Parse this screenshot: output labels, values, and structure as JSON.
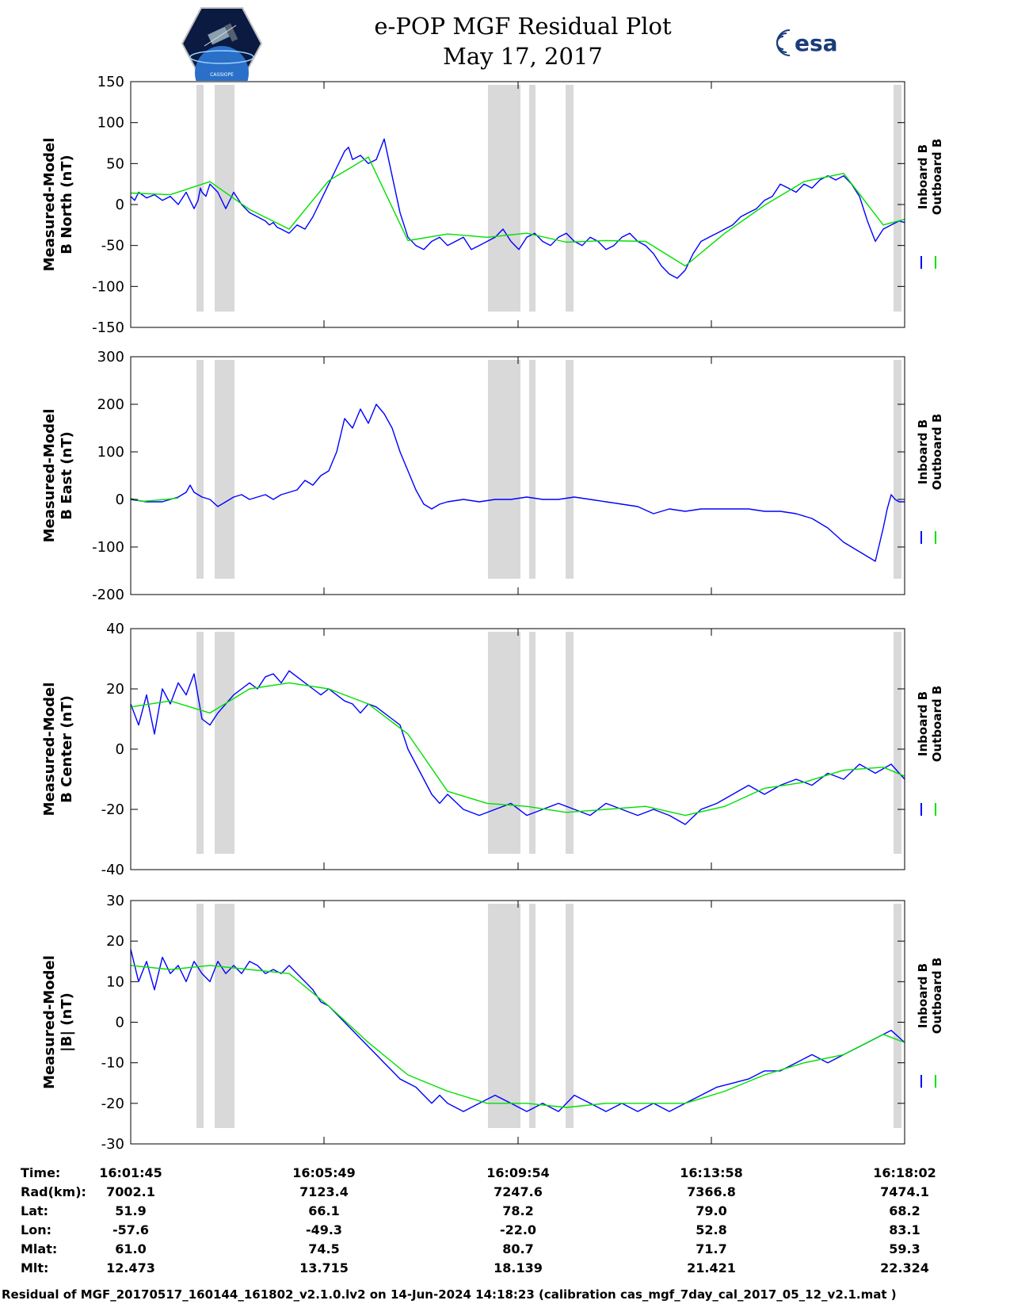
{
  "title": {
    "line1": "e-POP MGF Residual Plot",
    "line2": "May 17, 2017"
  },
  "logos": {
    "left": "cassiope-logo",
    "left_caption": "CASSIOPE",
    "right_text": "esa"
  },
  "colors": {
    "inboard": "#0000ff",
    "outboard": "#00e000",
    "gap": "#d9d9d9"
  },
  "chart_data": [
    {
      "type": "line",
      "ylabel_lines": [
        "Measured-Model",
        "B North (nT)"
      ],
      "ylim": [
        -150,
        150
      ],
      "yticks": [
        150,
        100,
        50,
        0,
        -50,
        -100,
        -150
      ],
      "legend": [
        "Inboard B",
        "Outboard B"
      ],
      "series": [
        {
          "name": "Inboard B",
          "color": "#0000ff",
          "x": [
            0,
            5,
            10,
            20,
            30,
            40,
            50,
            60,
            70,
            80,
            85,
            88,
            90,
            95,
            100,
            110,
            120,
            130,
            140,
            150,
            160,
            170,
            175,
            180,
            185,
            190,
            200,
            210,
            220,
            230,
            240,
            250,
            260,
            270,
            275,
            280,
            290,
            300,
            310,
            320,
            330,
            340,
            350,
            360,
            370,
            380,
            390,
            400,
            410,
            420,
            430,
            440,
            450,
            460,
            470,
            480,
            490,
            500,
            510,
            520,
            530,
            540,
            550,
            560,
            570,
            580,
            590,
            600,
            610,
            620,
            630,
            640,
            650,
            660,
            670,
            680,
            690,
            700,
            710,
            720,
            730,
            740,
            750,
            760,
            770,
            780,
            790,
            800,
            810,
            820,
            830,
            840,
            850,
            860,
            870,
            880,
            890,
            900,
            910,
            920,
            930,
            940,
            950,
            960,
            970,
            977
          ],
          "y": [
            10,
            5,
            15,
            8,
            12,
            5,
            10,
            0,
            15,
            -5,
            5,
            20,
            15,
            10,
            25,
            15,
            -5,
            15,
            0,
            -10,
            -15,
            -20,
            -25,
            -22,
            -28,
            -30,
            -35,
            -25,
            -30,
            -15,
            5,
            25,
            45,
            65,
            70,
            55,
            60,
            50,
            55,
            80,
            35,
            -10,
            -40,
            -50,
            -55,
            -45,
            -40,
            -50,
            -45,
            -40,
            -55,
            -50,
            -45,
            -40,
            -30,
            -45,
            -55,
            -40,
            -35,
            -45,
            -50,
            -40,
            -35,
            -45,
            -50,
            -40,
            -45,
            -55,
            -50,
            -40,
            -35,
            -45,
            -50,
            -60,
            -75,
            -85,
            -90,
            -80,
            -60,
            -45,
            -40,
            -35,
            -30,
            -25,
            -15,
            -10,
            -5,
            5,
            10,
            25,
            20,
            15,
            25,
            20,
            30,
            35,
            30,
            35,
            25,
            10,
            -20,
            -45,
            -30,
            -25,
            -20,
            -22
          ]
        },
        {
          "name": "Outboard B",
          "color": "#00e000",
          "x": [
            0,
            50,
            100,
            150,
            200,
            250,
            300,
            350,
            400,
            450,
            500,
            550,
            600,
            650,
            700,
            750,
            800,
            850,
            900,
            950,
            977
          ],
          "y": [
            14,
            12,
            28,
            -6,
            -30,
            29,
            58,
            -44,
            -36,
            -40,
            -35,
            -46,
            -44,
            -45,
            -75,
            -35,
            -1,
            28,
            38,
            -25,
            -18
          ]
        }
      ]
    },
    {
      "type": "line",
      "ylabel_lines": [
        "Measured-Model",
        "B East (nT)"
      ],
      "ylim": [
        -200,
        300
      ],
      "yticks": [
        300,
        200,
        100,
        0,
        -100,
        -200
      ],
      "legend": [
        "Inboard B",
        "Outboard B"
      ],
      "series": [
        {
          "name": "Inboard B",
          "color": "#0000ff",
          "x": [
            0,
            20,
            40,
            60,
            70,
            75,
            80,
            90,
            100,
            110,
            120,
            130,
            140,
            150,
            160,
            170,
            180,
            190,
            200,
            210,
            220,
            230,
            240,
            250,
            260,
            270,
            280,
            290,
            300,
            310,
            320,
            330,
            340,
            350,
            360,
            370,
            380,
            390,
            400,
            420,
            440,
            460,
            480,
            500,
            520,
            540,
            560,
            580,
            600,
            620,
            640,
            660,
            680,
            700,
            720,
            740,
            760,
            780,
            800,
            820,
            840,
            860,
            880,
            900,
            920,
            930,
            940,
            950,
            955,
            960,
            965,
            970,
            977
          ],
          "y": [
            0,
            -5,
            -5,
            5,
            15,
            30,
            15,
            5,
            0,
            -15,
            -5,
            5,
            10,
            0,
            5,
            10,
            0,
            10,
            15,
            20,
            40,
            30,
            50,
            60,
            100,
            170,
            150,
            190,
            160,
            200,
            180,
            150,
            100,
            60,
            20,
            -10,
            -20,
            -10,
            -5,
            0,
            -5,
            0,
            0,
            5,
            0,
            0,
            5,
            0,
            -5,
            -10,
            -15,
            -30,
            -20,
            -25,
            -20,
            -20,
            -20,
            -20,
            -25,
            -25,
            -30,
            -40,
            -60,
            -90,
            -110,
            -120,
            -130,
            -60,
            -20,
            10,
            0,
            -5,
            -5
          ]
        },
        {
          "name": "Outboard B",
          "color": "#00e000",
          "x": [
            0,
            15,
            30,
            45,
            60
          ],
          "y": [
            2,
            -4,
            -2,
            0,
            3
          ]
        }
      ]
    },
    {
      "type": "line",
      "ylabel_lines": [
        "Measured-Model",
        "B Center (nT)"
      ],
      "ylim": [
        -40,
        40
      ],
      "yticks": [
        40,
        20,
        0,
        -20,
        -40
      ],
      "legend": [
        "Inboard B",
        "Outboard B"
      ],
      "series": [
        {
          "name": "Inboard B",
          "color": "#0000ff",
          "x": [
            0,
            10,
            20,
            30,
            40,
            50,
            60,
            70,
            80,
            90,
            100,
            110,
            120,
            130,
            140,
            150,
            160,
            170,
            180,
            190,
            200,
            210,
            220,
            230,
            240,
            250,
            260,
            270,
            280,
            290,
            300,
            310,
            320,
            330,
            340,
            350,
            360,
            370,
            380,
            390,
            400,
            420,
            440,
            460,
            480,
            500,
            520,
            540,
            560,
            580,
            600,
            620,
            640,
            660,
            680,
            700,
            720,
            740,
            760,
            780,
            800,
            820,
            840,
            860,
            880,
            900,
            920,
            940,
            960,
            977
          ],
          "y": [
            15,
            8,
            18,
            5,
            20,
            15,
            22,
            18,
            25,
            10,
            8,
            12,
            15,
            18,
            20,
            22,
            20,
            24,
            25,
            22,
            26,
            24,
            22,
            20,
            18,
            20,
            18,
            16,
            15,
            12,
            15,
            14,
            12,
            10,
            8,
            0,
            -5,
            -10,
            -15,
            -18,
            -15,
            -20,
            -22,
            -20,
            -18,
            -22,
            -20,
            -18,
            -20,
            -22,
            -18,
            -20,
            -22,
            -20,
            -22,
            -25,
            -20,
            -18,
            -15,
            -12,
            -15,
            -12,
            -10,
            -12,
            -8,
            -10,
            -5,
            -8,
            -5,
            -10
          ]
        },
        {
          "name": "Outboard B",
          "color": "#00e000",
          "x": [
            0,
            50,
            100,
            150,
            200,
            250,
            300,
            350,
            400,
            450,
            500,
            550,
            600,
            650,
            700,
            750,
            800,
            850,
            900,
            950,
            977
          ],
          "y": [
            14,
            16,
            12,
            20,
            22,
            20,
            15,
            5,
            -14,
            -18,
            -19,
            -21,
            -20,
            -19,
            -22,
            -19,
            -13,
            -11,
            -7,
            -6,
            -9
          ]
        }
      ]
    },
    {
      "type": "line",
      "ylabel_lines": [
        "Measured-Model",
        "|B| (nT)"
      ],
      "ylim": [
        -30,
        30
      ],
      "yticks": [
        30,
        20,
        10,
        0,
        -10,
        -20,
        -30
      ],
      "legend": [
        "Inboard B",
        "Outboard B"
      ],
      "series": [
        {
          "name": "Inboard B",
          "color": "#0000ff",
          "x": [
            0,
            10,
            20,
            30,
            40,
            50,
            60,
            70,
            80,
            90,
            100,
            110,
            120,
            130,
            140,
            150,
            160,
            170,
            180,
            190,
            200,
            210,
            220,
            230,
            240,
            250,
            260,
            270,
            280,
            290,
            300,
            310,
            320,
            330,
            340,
            350,
            360,
            370,
            380,
            390,
            400,
            420,
            440,
            460,
            480,
            500,
            520,
            540,
            560,
            580,
            600,
            620,
            640,
            660,
            680,
            700,
            720,
            740,
            760,
            780,
            800,
            820,
            840,
            860,
            880,
            900,
            920,
            940,
            960,
            977
          ],
          "y": [
            18,
            10,
            15,
            8,
            16,
            12,
            14,
            10,
            15,
            12,
            10,
            15,
            12,
            14,
            12,
            15,
            14,
            12,
            13,
            12,
            14,
            12,
            10,
            8,
            5,
            4,
            2,
            0,
            -2,
            -4,
            -6,
            -8,
            -10,
            -12,
            -14,
            -15,
            -16,
            -18,
            -20,
            -18,
            -20,
            -22,
            -20,
            -18,
            -20,
            -22,
            -20,
            -22,
            -18,
            -20,
            -22,
            -20,
            -22,
            -20,
            -22,
            -20,
            -18,
            -16,
            -15,
            -14,
            -12,
            -12,
            -10,
            -8,
            -10,
            -8,
            -6,
            -4,
            -2,
            -5
          ]
        },
        {
          "name": "Outboard B",
          "color": "#00e000",
          "x": [
            0,
            50,
            100,
            150,
            200,
            250,
            300,
            350,
            400,
            450,
            500,
            550,
            600,
            650,
            700,
            750,
            800,
            850,
            900,
            950,
            977
          ],
          "y": [
            14,
            13,
            14,
            13,
            12,
            4,
            -5,
            -13,
            -17,
            -20,
            -20,
            -21,
            -20,
            -20,
            -20,
            -17,
            -13,
            -10,
            -8,
            -3,
            -5
          ]
        }
      ]
    }
  ],
  "gaps": [
    [
      83,
      92
    ],
    [
      106,
      131
    ],
    [
      451,
      492
    ],
    [
      503,
      511
    ],
    [
      549,
      559
    ],
    [
      963,
      973
    ]
  ],
  "xaxis": {
    "ticks": [
      0,
      244,
      489,
      733,
      977
    ],
    "labels": [
      "16:01:45",
      "16:05:49",
      "16:09:54",
      "16:13:58",
      "16:18:02"
    ]
  },
  "info": {
    "rows": [
      {
        "label": "Time:",
        "values": [
          "16:01:45",
          "16:05:49",
          "16:09:54",
          "16:13:58",
          "16:18:02"
        ]
      },
      {
        "label": "Rad(km):",
        "values": [
          "7002.1",
          "7123.4",
          "7247.6",
          "7366.8",
          "7474.1"
        ]
      },
      {
        "label": "Lat:",
        "values": [
          "51.9",
          "66.1",
          "78.2",
          "79.0",
          "68.2"
        ]
      },
      {
        "label": "Lon:",
        "values": [
          "-57.6",
          "-49.3",
          "-22.0",
          "52.8",
          "83.1"
        ]
      },
      {
        "label": "Mlat:",
        "values": [
          "61.0",
          "74.5",
          "80.7",
          "71.7",
          "59.3"
        ]
      },
      {
        "label": "Mlt:",
        "values": [
          "12.473",
          "13.715",
          "18.139",
          "21.421",
          "22.324"
        ]
      }
    ]
  },
  "footer": "Residual of MGF_20170517_160144_161802_v2.1.0.lv2 on 14-Jun-2024 14:18:23 (calibration cas_mgf_7day_cal_2017_05_12_v2.1.mat )"
}
